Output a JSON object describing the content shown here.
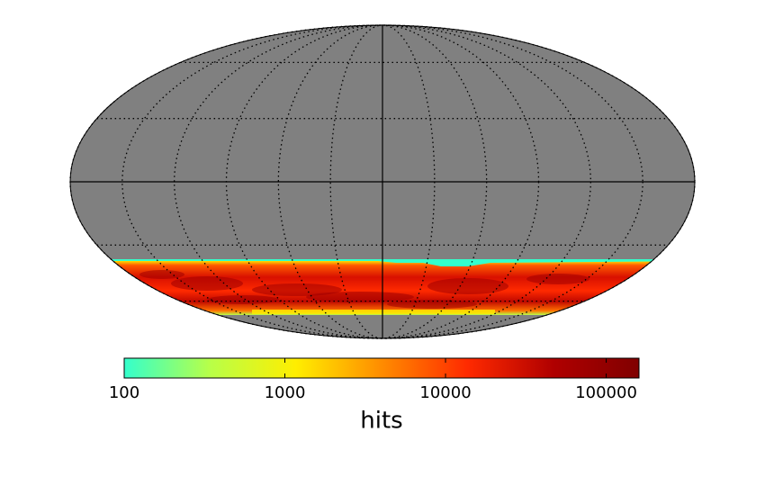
{
  "chart_data": {
    "type": "mollweide",
    "colorbar": {
      "label": "hits",
      "lim": [
        100,
        160000
      ],
      "ticks": [
        100,
        1000,
        10000,
        100000
      ],
      "log": true,
      "colormap": [
        "#33ffcc",
        "#b8ff48",
        "#ffee00",
        "#ff8c00",
        "#ff2a00",
        "#b00000",
        "#800000"
      ]
    },
    "background_color": "#808080",
    "grid": true
  }
}
